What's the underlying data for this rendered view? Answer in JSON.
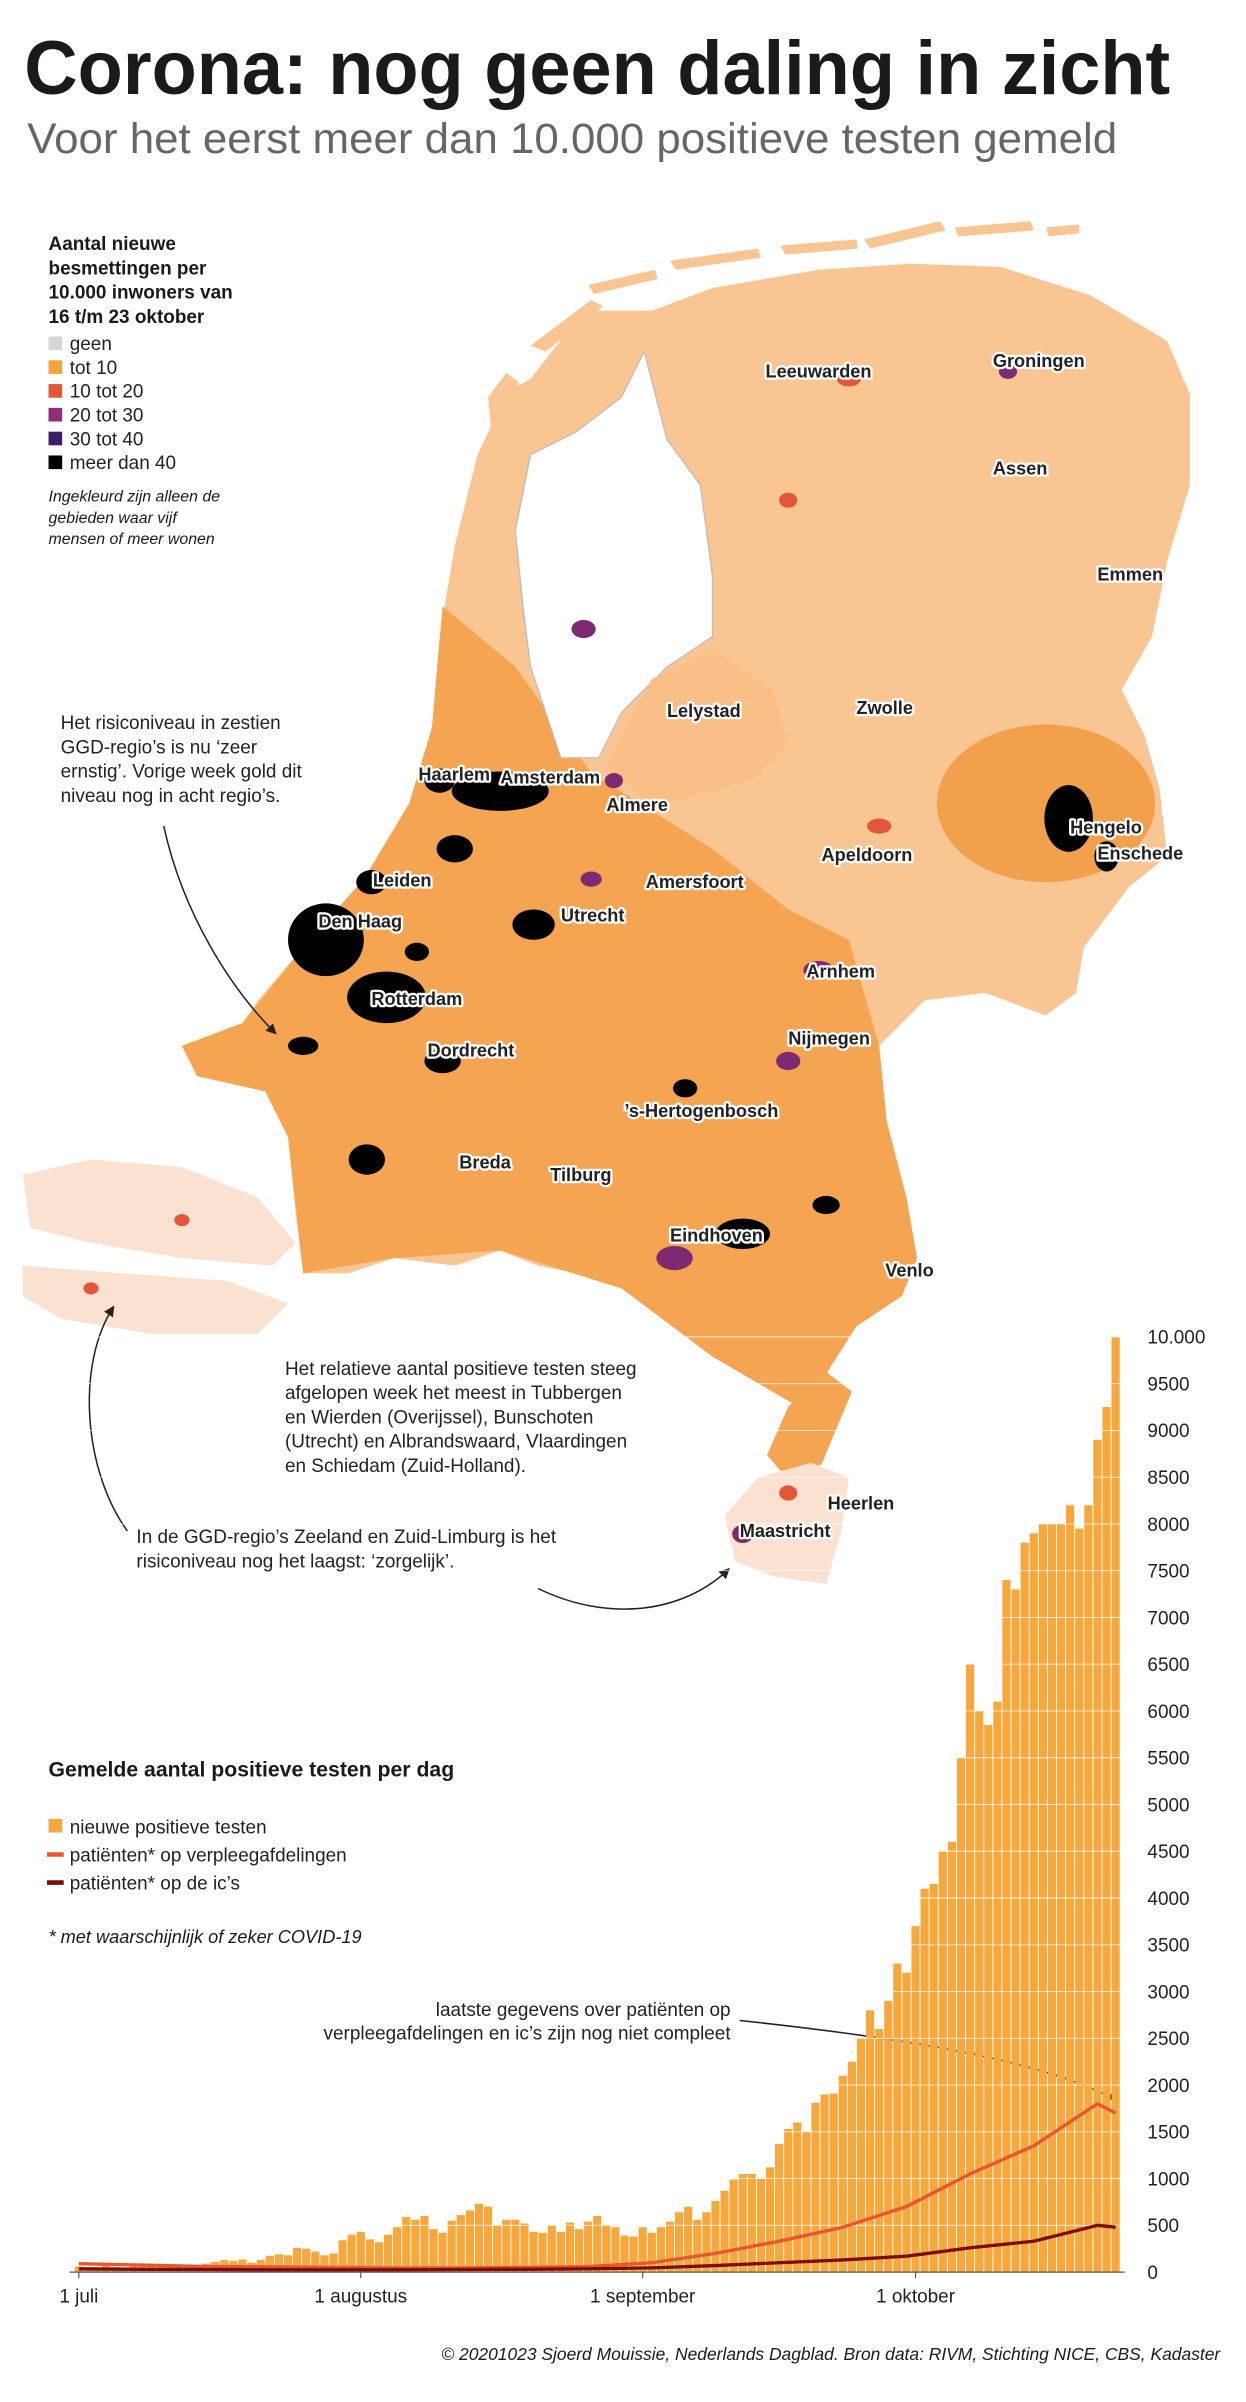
{
  "header": {
    "title": "Corona: nog geen daling in zicht",
    "subtitle": "Voor het eerst meer dan 10.000 positieve testen gemeld"
  },
  "map": {
    "legend_title": [
      "Aantal nieuwe",
      "besmettingen per",
      "10.000 inwoners van",
      "16 t/m 23 oktober"
    ],
    "legend": [
      {
        "label": "geen",
        "color": "#d6d6d6"
      },
      {
        "label": "tot 10",
        "color": "#f5a33b"
      },
      {
        "label": "10 tot 20",
        "color": "#e2573a"
      },
      {
        "label": "20 tot 30",
        "color": "#8e2e78"
      },
      {
        "label": "30 tot 40",
        "color": "#3b1f66"
      },
      {
        "label": "meer dan 40",
        "color": "#000000"
      }
    ],
    "legend_note": [
      "Ingekleurd zijn alleen de",
      "gebieden waar vijf",
      "mensen of meer wonen"
    ],
    "cities": [
      "Leeuwarden",
      "Groningen",
      "Assen",
      "Emmen",
      "Lelystad",
      "Zwolle",
      "Haarlem",
      "Amsterdam",
      "Almere",
      "Hengelo",
      "Enschede",
      "Apeldoorn",
      "Leiden",
      "Amersfoort",
      "Den Haag",
      "Utrecht",
      "Arnhem",
      "Rotterdam",
      "Nijmegen",
      "Dordrecht",
      "’s-Hertogenbosch",
      "Breda",
      "Tilburg",
      "Eindhoven",
      "Venlo",
      "Heerlen",
      "Maastricht"
    ],
    "annotations": [
      [
        "Het risiconiveau in zestien",
        "GGD-regio’s is nu ‘zeer",
        "ernstig’. Vorige week gold dit",
        "niveau nog in acht regio’s."
      ],
      [
        "Het relatieve aantal positieve testen steeg",
        "afgelopen week het meest in Tubbergen",
        "en Wierden (Overijssel), Bunschoten",
        "(Utrecht) en Albrandswaard, Vlaardingen",
        "en Schiedam (Zuid-Holland)."
      ],
      [
        "In de GGD-regio’s Zeeland en Zuid-Limburg is het",
        "risiconiveau nog het laagst: ‘zorgelijk’."
      ]
    ]
  },
  "chart_data": {
    "type": "bar",
    "title": "Gemelde aantal positieve testen per dag",
    "note": "* met waarschijnlijk of zeker COVID-19",
    "annotation": [
      "laatste gegevens over patiënten op",
      "verpleegafdelingen en ic’s zijn nog niet compleet"
    ],
    "x": [
      0,
      1,
      2,
      3,
      4,
      5,
      6,
      7,
      8,
      9,
      10,
      11,
      12,
      13,
      14,
      15,
      16,
      17,
      18,
      19,
      20,
      21,
      22,
      23,
      24,
      25,
      26,
      27,
      28,
      29,
      30,
      31,
      32,
      33,
      34,
      35,
      36,
      37,
      38,
      39,
      40,
      41,
      42,
      43,
      44,
      45,
      46,
      47,
      48,
      49,
      50,
      51,
      52,
      53,
      54,
      55,
      56,
      57,
      58,
      59,
      60,
      61,
      62,
      63,
      64,
      65,
      66,
      67,
      68,
      69,
      70,
      71,
      72,
      73,
      74,
      75,
      76,
      77,
      78,
      79,
      80,
      81,
      82,
      83,
      84,
      85,
      86,
      87,
      88,
      89,
      90,
      91,
      92,
      93,
      94,
      95,
      96,
      97,
      98,
      99,
      100,
      101,
      102,
      103,
      104,
      105,
      106,
      107,
      108,
      109,
      110,
      111,
      112,
      113,
      114
    ],
    "xlim": [
      0,
      114
    ],
    "xticks": [
      {
        "value": 0,
        "label": "1 juli"
      },
      {
        "value": 31,
        "label": "1 augustus"
      },
      {
        "value": 62,
        "label": "1 september"
      },
      {
        "value": 92,
        "label": "1 oktober"
      }
    ],
    "ylim": [
      0,
      10000
    ],
    "yticks": [
      0,
      500,
      1000,
      1500,
      2000,
      2500,
      3000,
      3500,
      4000,
      4500,
      5000,
      5500,
      6000,
      6500,
      7000,
      7500,
      8000,
      8500,
      9000,
      9500,
      {
        "value": 10000,
        "label": "10.000"
      }
    ],
    "grid": true,
    "series": [
      {
        "name": "nieuwe positieve testen",
        "type": "bar",
        "color": "#f6a83c",
        "values": [
          60,
          50,
          45,
          70,
          55,
          50,
          60,
          85,
          70,
          65,
          70,
          65,
          60,
          55,
          90,
          110,
          130,
          120,
          135,
          100,
          130,
          175,
          190,
          180,
          260,
          250,
          220,
          180,
          200,
          340,
          400,
          430,
          350,
          320,
          400,
          480,
          590,
          560,
          600,
          460,
          420,
          550,
          610,
          660,
          730,
          700,
          500,
          560,
          560,
          520,
          430,
          420,
          500,
          430,
          530,
          460,
          540,
          600,
          500,
          480,
          390,
          380,
          480,
          420,
          480,
          540,
          640,
          700,
          560,
          640,
          760,
          870,
          990,
          1050,
          1050,
          1000,
          1120,
          1370,
          1530,
          1600,
          1500,
          1810,
          1900,
          1910,
          2100,
          2250,
          2500,
          2800,
          2600,
          2900,
          3300,
          3200,
          3700,
          4100,
          4150,
          4500,
          4600,
          5500,
          6500,
          6000,
          5850,
          6100,
          7400,
          7300,
          7800,
          7900,
          8000,
          8000,
          8000,
          8200,
          7950,
          8200,
          8900,
          9250,
          10000
        ]
      },
      {
        "name": "patiënten* op verpleegafdelingen",
        "type": "line",
        "color": "#e8552f",
        "x": [
          0,
          7,
          14,
          21,
          28,
          35,
          42,
          49,
          56,
          63,
          70,
          77,
          84,
          91,
          98,
          105,
          112,
          114
        ],
        "values": [
          90,
          75,
          60,
          55,
          50,
          45,
          45,
          50,
          60,
          100,
          200,
          330,
          480,
          700,
          1050,
          1350,
          1800,
          1700
        ]
      },
      {
        "name": "patiënten* op de ic’s",
        "type": "line",
        "color": "#7e0c0c",
        "x": [
          0,
          7,
          14,
          21,
          28,
          35,
          42,
          49,
          56,
          63,
          70,
          77,
          84,
          91,
          98,
          105,
          112,
          114
        ],
        "values": [
          35,
          30,
          28,
          25,
          25,
          25,
          28,
          30,
          35,
          45,
          70,
          100,
          130,
          170,
          260,
          330,
          500,
          480
        ]
      }
    ]
  },
  "footer": "© 20201023 Sjoerd Mouissie, Nederlands Dagblad. Bron data: RIVM, Stichting NICE, CBS, Kadaster"
}
